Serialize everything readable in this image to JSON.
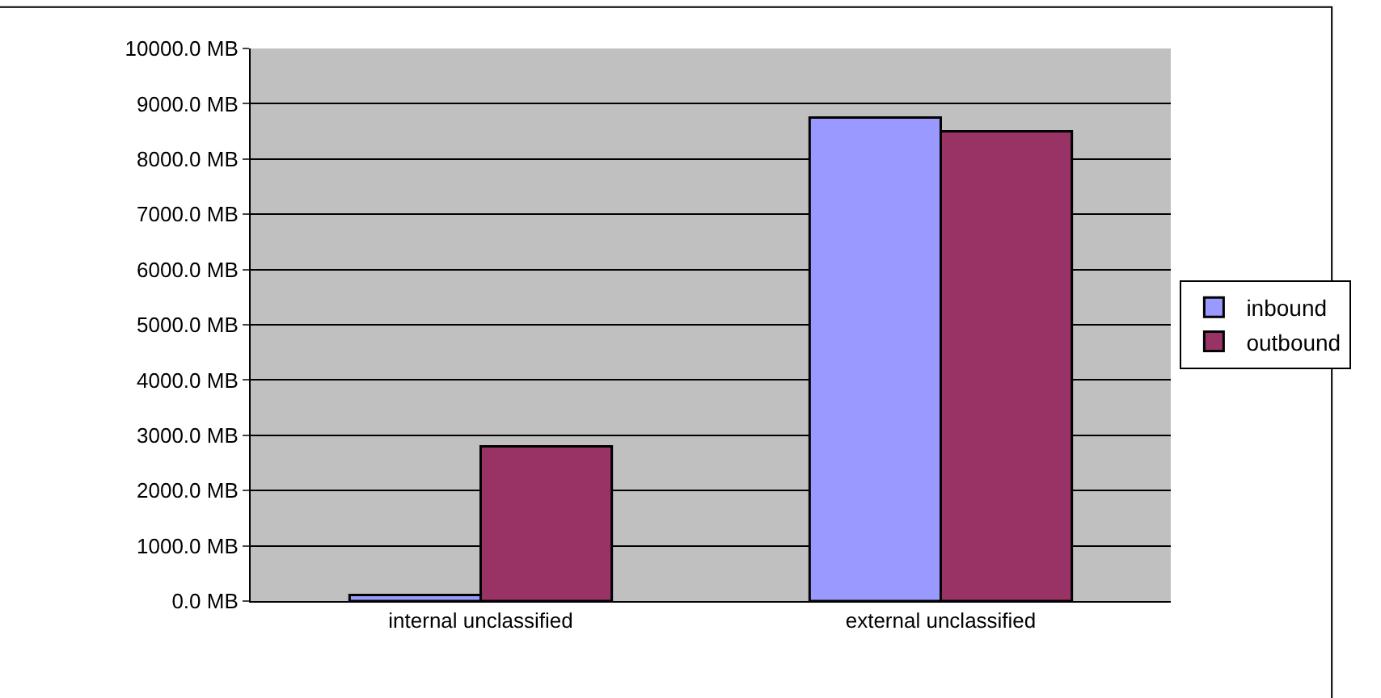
{
  "chart_data": {
    "type": "bar",
    "categories": [
      "internal unclassified",
      "external unclassified"
    ],
    "series": [
      {
        "name": "inbound",
        "color": "#9999ff",
        "values": [
          110,
          8750
        ]
      },
      {
        "name": "outbound",
        "color": "#993366",
        "values": [
          2800,
          8500
        ]
      }
    ],
    "ylim": [
      0,
      10000
    ],
    "yticks": [
      {
        "value": 0,
        "label": "0.0 MB"
      },
      {
        "value": 1000,
        "label": "1000.0 MB"
      },
      {
        "value": 2000,
        "label": "2000.0 MB"
      },
      {
        "value": 3000,
        "label": "3000.0 MB"
      },
      {
        "value": 4000,
        "label": "4000.0 MB"
      },
      {
        "value": 5000,
        "label": "5000.0 MB"
      },
      {
        "value": 6000,
        "label": "6000.0 MB"
      },
      {
        "value": 7000,
        "label": "7000.0 MB"
      },
      {
        "value": 8000,
        "label": "8000.0 MB"
      },
      {
        "value": 9000,
        "label": "9000.0 MB"
      },
      {
        "value": 10000,
        "label": "10000.0 MB"
      }
    ],
    "grid": "y",
    "legend": "right"
  }
}
